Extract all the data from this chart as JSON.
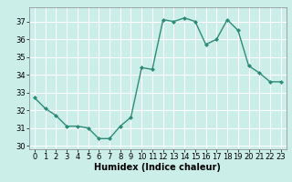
{
  "x": [
    0,
    1,
    2,
    3,
    4,
    5,
    6,
    7,
    8,
    9,
    10,
    11,
    12,
    13,
    14,
    15,
    16,
    17,
    18,
    19,
    20,
    21,
    22,
    23
  ],
  "y": [
    32.7,
    32.1,
    31.7,
    31.1,
    31.1,
    31.0,
    30.4,
    30.4,
    31.1,
    31.6,
    34.4,
    34.3,
    37.1,
    37.0,
    37.2,
    37.0,
    35.7,
    36.0,
    37.1,
    36.5,
    34.5,
    34.1,
    33.6,
    33.6
  ],
  "line_color": "#2d8b78",
  "marker": "D",
  "marker_size": 2.0,
  "linewidth": 1.0,
  "bg_color": "#cceee8",
  "grid_color": "#ffffff",
  "xlabel": "Humidex (Indice chaleur)",
  "ylabel": "",
  "xlim": [
    -0.5,
    23.5
  ],
  "ylim": [
    29.8,
    37.8
  ],
  "yticks": [
    30,
    31,
    32,
    33,
    34,
    35,
    36,
    37
  ],
  "xticks": [
    0,
    1,
    2,
    3,
    4,
    5,
    6,
    7,
    8,
    9,
    10,
    11,
    12,
    13,
    14,
    15,
    16,
    17,
    18,
    19,
    20,
    21,
    22,
    23
  ],
  "xtick_labels": [
    "0",
    "1",
    "2",
    "3",
    "4",
    "5",
    "6",
    "7",
    "8",
    "9",
    "10",
    "11",
    "12",
    "13",
    "14",
    "15",
    "16",
    "17",
    "18",
    "19",
    "20",
    "21",
    "22",
    "23"
  ],
  "xlabel_fontsize": 7,
  "tick_fontsize": 6
}
